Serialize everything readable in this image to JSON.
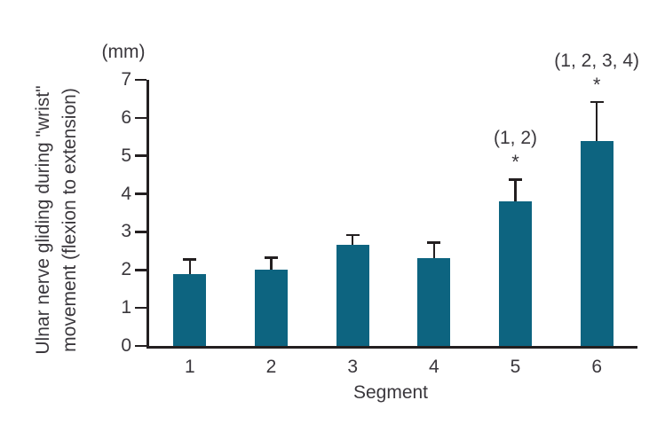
{
  "chart_data": {
    "type": "bar",
    "title": "",
    "unit": "(mm)",
    "xlabel": "Segment",
    "ylabel": "Ulnar nerve gliding during \"wrist\" movement (flexion to extension)",
    "ylabel_lines": [
      "Ulnar nerve gliding during \"wrist\"",
      "movement (flexion to extension)"
    ],
    "categories": [
      "1",
      "2",
      "3",
      "4",
      "5",
      "6"
    ],
    "values": [
      1.9,
      2.0,
      2.65,
      2.3,
      3.8,
      5.4
    ],
    "errors_plus": [
      0.4,
      0.35,
      0.3,
      0.45,
      0.6,
      1.05
    ],
    "ylim": [
      0,
      7
    ],
    "yticks": [
      0,
      1,
      2,
      3,
      4,
      5,
      6,
      7
    ],
    "grid": false,
    "legend": null,
    "annotations": [
      {
        "category": "5",
        "label": "(1, 2)",
        "marker": "*"
      },
      {
        "category": "6",
        "label": "(1, 2, 3, 4)",
        "marker": "*"
      }
    ]
  },
  "colors": {
    "bar": "#0d6480",
    "axis": "#231f20",
    "text": "#3a373c"
  }
}
